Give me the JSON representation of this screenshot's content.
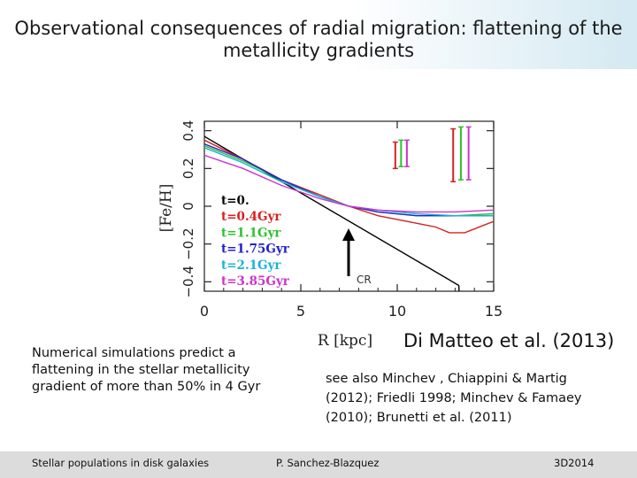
{
  "slide": {
    "title_line1": "Observational consequences of radial migration: flattening of the",
    "title_line2": "metallicity gradients",
    "left_note": "Numerical simulations predict a flattening in the stellar metallicity gradient of more than 50% in 4 Gyr",
    "credit": "Di Matteo et al. (2013)",
    "right_note": "see also Minchev , Chiappini & Martig (2012); Friedli 1998; Minchev & Famaey (2010); Brunetti et al. (2011)"
  },
  "footer": {
    "left": "Stellar populations in disk galaxies",
    "center": "P. Sanchez-Blazquez",
    "right": "3D2014"
  },
  "colors": {
    "title_band": "#d4e9f2",
    "footer": "#dcdcdc"
  },
  "chart_data": {
    "type": "line",
    "xlabel": "R [kpc]",
    "ylabel": "[Fe/H]",
    "xlim": [
      0,
      15
    ],
    "ylim": [
      -0.45,
      0.45
    ],
    "x_ticks": [
      0,
      5,
      10,
      15
    ],
    "y_ticks": [
      -0.4,
      -0.2,
      0,
      0.2,
      0.4
    ],
    "x_tick_labels": [
      "0",
      "5",
      "10",
      "15"
    ],
    "y_tick_labels": [
      "−0.4",
      "−0.2",
      "0",
      "0.2",
      "0.4"
    ],
    "annotation": {
      "text": "CR",
      "x": 7.5
    },
    "series": [
      {
        "name": "t=0.",
        "color": "#000000",
        "x": [
          0,
          13.2
        ],
        "y": [
          0.37,
          -0.42
        ]
      },
      {
        "name": "t=0.4Gyr",
        "color": "#d62020",
        "x": [
          0,
          2,
          4,
          6,
          7.5,
          9,
          10.5,
          12,
          12.7,
          13.5,
          14.5,
          15
        ],
        "y": [
          0.35,
          0.25,
          0.14,
          0.06,
          0,
          -0.05,
          -0.08,
          -0.11,
          -0.14,
          -0.14,
          -0.1,
          -0.08
        ]
      },
      {
        "name": "t=1.1Gyr",
        "color": "#2ec02e",
        "x": [
          0,
          2,
          4,
          6,
          7.5,
          9,
          11,
          13,
          15
        ],
        "y": [
          0.32,
          0.24,
          0.14,
          0.05,
          0,
          -0.03,
          -0.05,
          -0.05,
          -0.04
        ]
      },
      {
        "name": "t=1.75Gyr",
        "color": "#2222cc",
        "x": [
          0,
          2,
          4,
          6,
          7.5,
          9,
          11,
          13,
          15
        ],
        "y": [
          0.33,
          0.25,
          0.14,
          0.05,
          0,
          -0.03,
          -0.05,
          -0.05,
          -0.05
        ]
      },
      {
        "name": "t=2.1Gyr",
        "color": "#19b2d8",
        "x": [
          0,
          2,
          4,
          6,
          7.5,
          9,
          11,
          13,
          15
        ],
        "y": [
          0.31,
          0.23,
          0.13,
          0.05,
          0,
          -0.02,
          -0.04,
          -0.05,
          -0.05
        ]
      },
      {
        "name": "t=3.85Gyr",
        "color": "#cc33cc",
        "x": [
          0,
          2,
          4,
          6,
          7.5,
          9,
          11,
          13,
          15
        ],
        "y": [
          0.27,
          0.2,
          0.11,
          0.04,
          0,
          -0.02,
          -0.03,
          -0.03,
          -0.02
        ]
      }
    ],
    "error_bars": [
      {
        "color": "#d62020",
        "x": 9.9,
        "y": 0.27,
        "half": 0.07
      },
      {
        "color": "#2ec02e",
        "x": 10.2,
        "y": 0.28,
        "half": 0.07
      },
      {
        "color": "#cc33cc",
        "x": 10.5,
        "y": 0.28,
        "half": 0.07
      },
      {
        "color": "#d62020",
        "x": 12.9,
        "y": 0.27,
        "half": 0.14
      },
      {
        "color": "#2ec02e",
        "x": 13.3,
        "y": 0.28,
        "half": 0.14
      },
      {
        "color": "#cc33cc",
        "x": 13.7,
        "y": 0.28,
        "half": 0.14
      }
    ]
  }
}
